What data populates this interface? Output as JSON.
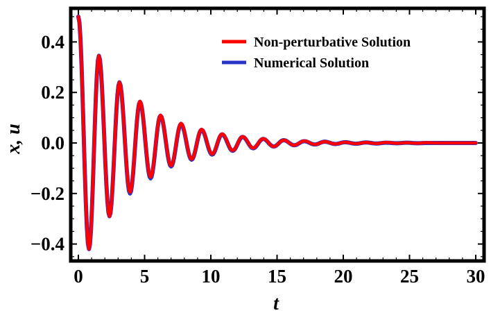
{
  "chart_data": {
    "type": "line",
    "xlabel": "t",
    "ylabel": "x, u",
    "xlim": [
      0,
      30
    ],
    "ylim": [
      -0.45,
      0.55
    ],
    "xticks": [
      0,
      5,
      10,
      15,
      20,
      25,
      30
    ],
    "xtick_labels": [
      "0",
      "5",
      "10",
      "15",
      "20",
      "25",
      "30"
    ],
    "yticks": [
      -0.4,
      -0.2,
      0.0,
      0.2,
      0.4
    ],
    "ytick_labels": [
      "−0.4",
      "−0.2",
      "0.0",
      "0.2",
      "0.4"
    ],
    "legend_position": "top-right",
    "series": [
      {
        "name": "Non-perturbative Solution",
        "color": "#ff0000",
        "x": [
          0.0,
          0.8,
          1.55,
          2.35,
          3.1,
          3.9,
          4.65,
          5.45,
          6.2,
          7.0,
          7.75,
          8.55,
          9.3,
          10.1,
          10.85,
          11.65,
          12.4,
          13.2,
          13.95,
          14.75,
          15.5,
          16.3,
          17.05,
          17.85,
          18.6,
          19.4,
          20.15,
          20.95,
          21.7,
          22.5,
          23.25,
          24.05,
          24.8,
          25.6,
          26.35,
          27.15,
          27.9,
          28.7,
          29.45,
          30.0
        ],
        "y": [
          0.5,
          -0.42,
          0.345,
          -0.29,
          0.24,
          -0.195,
          0.165,
          -0.135,
          0.11,
          -0.09,
          0.078,
          -0.064,
          0.054,
          -0.044,
          0.036,
          -0.03,
          0.025,
          -0.02,
          0.017,
          -0.014,
          0.011,
          -0.009,
          0.008,
          -0.006,
          0.005,
          -0.004,
          0.003,
          -0.003,
          0.002,
          -0.002,
          0.002,
          -0.001,
          0.001,
          -0.001,
          0.001,
          0.0,
          0.0,
          0.0,
          0.0,
          0.0
        ]
      },
      {
        "name": "Numerical Solution",
        "color": "#2a35c8",
        "x": [
          0.0,
          0.8,
          1.55,
          2.35,
          3.1,
          3.9,
          4.65,
          5.45,
          6.2,
          7.0,
          7.75,
          8.55,
          9.3,
          10.1,
          10.85,
          11.65,
          12.4,
          13.2,
          13.95,
          14.75,
          15.5,
          16.3,
          17.05,
          17.85,
          18.6,
          19.4,
          20.15,
          20.95,
          21.7,
          22.5,
          23.25,
          24.05,
          24.8,
          25.6,
          26.35,
          27.15,
          27.9,
          28.7,
          29.45,
          30.0
        ],
        "y": [
          0.5,
          -0.42,
          0.345,
          -0.29,
          0.24,
          -0.2,
          0.163,
          -0.14,
          0.108,
          -0.093,
          0.075,
          -0.066,
          0.052,
          -0.046,
          0.034,
          -0.031,
          0.024,
          -0.021,
          0.016,
          -0.014,
          0.011,
          -0.009,
          0.007,
          -0.006,
          0.005,
          -0.004,
          0.003,
          -0.003,
          0.002,
          -0.002,
          0.001,
          -0.001,
          0.001,
          -0.001,
          0.0,
          0.0,
          0.0,
          0.0,
          0.0,
          0.0
        ]
      }
    ]
  }
}
